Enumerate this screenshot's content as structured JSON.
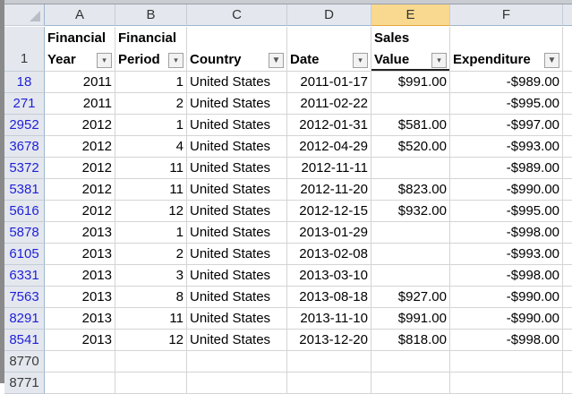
{
  "columns": [
    "A",
    "B",
    "C",
    "D",
    "E",
    "F"
  ],
  "selected_column": "E",
  "header_row": {
    "number": "1",
    "cells": [
      {
        "line1": "Financial",
        "line2": "Year",
        "filter": "dropdown"
      },
      {
        "line1": "Financial",
        "line2": "Period",
        "filter": "dropdown"
      },
      {
        "line1": "",
        "line2": "Country",
        "filter": "filtered"
      },
      {
        "line1": "",
        "line2": "Date",
        "filter": "dropdown"
      },
      {
        "line1": "Sales",
        "line2": "Value",
        "filter": "dropdown"
      },
      {
        "line1": "",
        "line2": "Expenditure",
        "filter": "filtered"
      }
    ]
  },
  "rows": [
    {
      "n": "18",
      "y": "2011",
      "p": "1",
      "c": "United States",
      "d": "2011-01-17",
      "s": "$991.00",
      "e": "-$989.00"
    },
    {
      "n": "271",
      "y": "2011",
      "p": "2",
      "c": "United States",
      "d": "2011-02-22",
      "s": "",
      "e": "-$995.00"
    },
    {
      "n": "2952",
      "y": "2012",
      "p": "1",
      "c": "United States",
      "d": "2012-01-31",
      "s": "$581.00",
      "e": "-$997.00"
    },
    {
      "n": "3678",
      "y": "2012",
      "p": "4",
      "c": "United States",
      "d": "2012-04-29",
      "s": "$520.00",
      "e": "-$993.00"
    },
    {
      "n": "5372",
      "y": "2012",
      "p": "11",
      "c": "United States",
      "d": "2012-11-11",
      "s": "",
      "e": "-$989.00"
    },
    {
      "n": "5381",
      "y": "2012",
      "p": "11",
      "c": "United States",
      "d": "2012-11-20",
      "s": "$823.00",
      "e": "-$990.00"
    },
    {
      "n": "5616",
      "y": "2012",
      "p": "12",
      "c": "United States",
      "d": "2012-12-15",
      "s": "$932.00",
      "e": "-$995.00"
    },
    {
      "n": "5878",
      "y": "2013",
      "p": "1",
      "c": "United States",
      "d": "2013-01-29",
      "s": "",
      "e": "-$998.00"
    },
    {
      "n": "6105",
      "y": "2013",
      "p": "2",
      "c": "United States",
      "d": "2013-02-08",
      "s": "",
      "e": "-$993.00"
    },
    {
      "n": "6331",
      "y": "2013",
      "p": "3",
      "c": "United States",
      "d": "2013-03-10",
      "s": "",
      "e": "-$998.00"
    },
    {
      "n": "7563",
      "y": "2013",
      "p": "8",
      "c": "United States",
      "d": "2013-08-18",
      "s": "$927.00",
      "e": "-$990.00"
    },
    {
      "n": "8291",
      "y": "2013",
      "p": "11",
      "c": "United States",
      "d": "2013-11-10",
      "s": "$991.00",
      "e": "-$990.00"
    },
    {
      "n": "8541",
      "y": "2013",
      "p": "12",
      "c": "United States",
      "d": "2013-12-20",
      "s": "$818.00",
      "e": "-$998.00"
    }
  ],
  "empty_rows": [
    "8770",
    "8771"
  ]
}
